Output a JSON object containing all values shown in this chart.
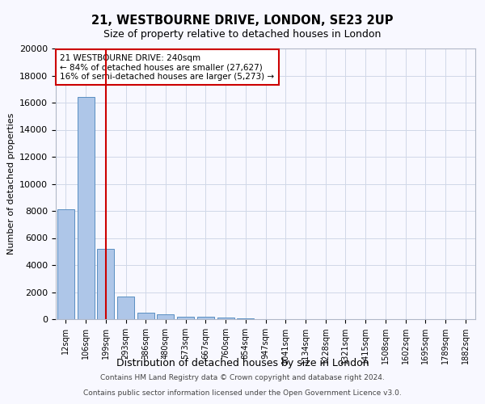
{
  "title_line1": "21, WESTBOURNE DRIVE, LONDON, SE23 2UP",
  "title_line2": "Size of property relative to detached houses in London",
  "xlabel": "Distribution of detached houses by size in London",
  "ylabel": "Number of detached properties",
  "annotation_line1": "21 WESTBOURNE DRIVE: 240sqm",
  "annotation_line2": "← 84% of detached houses are smaller (27,627)",
  "annotation_line3": "16% of semi-detached houses are larger (5,273) →",
  "footer_line1": "Contains HM Land Registry data © Crown copyright and database right 2024.",
  "footer_line2": "Contains public sector information licensed under the Open Government Licence v3.0.",
  "categories": [
    "12sqm",
    "106sqm",
    "199sqm",
    "293sqm",
    "386sqm",
    "480sqm",
    "573sqm",
    "667sqm",
    "760sqm",
    "854sqm",
    "947sqm",
    "1041sqm",
    "1134sqm",
    "1228sqm",
    "1321sqm",
    "1415sqm",
    "1508sqm",
    "1602sqm",
    "1695sqm",
    "1789sqm",
    "1882sqm"
  ],
  "values": [
    8100,
    16400,
    5200,
    1700,
    450,
    350,
    200,
    150,
    120,
    80,
    0,
    0,
    0,
    0,
    0,
    0,
    0,
    0,
    0,
    0,
    0
  ],
  "bar_color": "#aec6e8",
  "bar_edge_color": "#5a8fc2",
  "vline_x": 2,
  "vline_color": "#cc0000",
  "ylim": [
    0,
    20000
  ],
  "yticks": [
    0,
    2000,
    4000,
    6000,
    8000,
    10000,
    12000,
    14000,
    16000,
    18000,
    20000
  ],
  "annotation_box_color": "#cc0000",
  "grid_color": "#d0d8e8",
  "bg_color": "#f8f8ff"
}
